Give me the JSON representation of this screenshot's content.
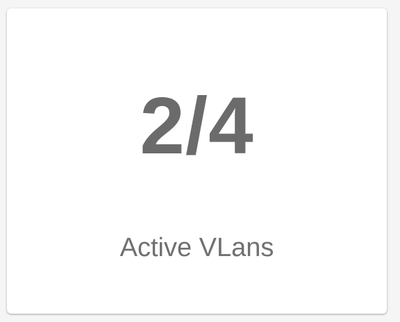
{
  "card": {
    "value": "2/4",
    "label": "Active VLans"
  },
  "colors": {
    "background": "#f5f5f5",
    "card": "#ffffff",
    "value_text": "#6b6b6b",
    "label_text": "#707070"
  }
}
